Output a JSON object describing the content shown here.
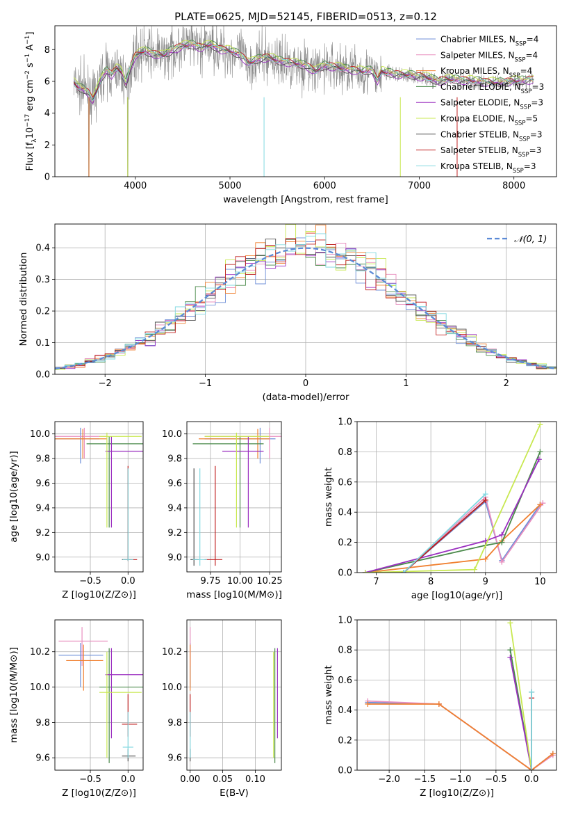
{
  "figure_title": "PLATE=0625, MJD=52145, FIBERID=0513, z=0.12",
  "models": [
    {
      "name": "Chabrier MILES",
      "nssp": "4",
      "color": "#6f8fd8"
    },
    {
      "name": "Salpeter MILES",
      "nssp": "4",
      "color": "#e88fbf"
    },
    {
      "name": "Kroupa MILES",
      "nssp": "4",
      "color": "#f08030"
    },
    {
      "name": "Chabrier ELODIE",
      "nssp": "3",
      "color": "#4a8a4a"
    },
    {
      "name": "Salpeter ELODIE",
      "nssp": "3",
      "color": "#9b30c0"
    },
    {
      "name": "Kroupa ELODIE",
      "nssp": "5",
      "color": "#c8e850"
    },
    {
      "name": "Chabrier STELIB",
      "nssp": "3",
      "color": "#505050"
    },
    {
      "name": "Salpeter STELIB",
      "nssp": "3",
      "color": "#c02020"
    },
    {
      "name": "Kroupa STELIB",
      "nssp": "3",
      "color": "#80d8e0"
    }
  ],
  "colors": {
    "data_line": "#8a8a8a",
    "gaussian": "#5b8ad6",
    "grid": "#b0b0b0"
  },
  "chart_data": [
    {
      "id": "spectrum",
      "type": "line",
      "title": "PLATE=0625, MJD=52145, FIBERID=0513, z=0.12",
      "xlabel": "wavelength [Angstrom, rest frame]",
      "ylabel_parts": [
        "Flux [f",
        "λ",
        "10",
        "−17",
        " erg cm",
        "−2",
        " s",
        "−1",
        " A",
        "−1",
        "]"
      ],
      "xlim": [
        3150,
        8450
      ],
      "ylim": [
        0,
        9.5
      ],
      "xticks": [
        4000,
        5000,
        6000,
        7000,
        8000
      ],
      "yticks": [
        0,
        2,
        4,
        6,
        8
      ],
      "grid": false,
      "legend_loc": "upper right",
      "model_curve": {
        "x": [
          3350,
          3400,
          3450,
          3500,
          3550,
          3600,
          3650,
          3700,
          3750,
          3800,
          3850,
          3900,
          3950,
          4000,
          4100,
          4200,
          4300,
          4400,
          4500,
          4600,
          4700,
          4800,
          4900,
          5000,
          5100,
          5200,
          5300,
          5400,
          5500,
          5600,
          5700,
          5800,
          5900,
          6000,
          6100,
          6200,
          6300,
          6400,
          6500,
          6560,
          6600,
          6700,
          6800,
          6900,
          7000,
          7100,
          7200,
          7300,
          7400,
          7600,
          7800,
          8000,
          8200
        ],
        "y": [
          5.9,
          5.6,
          5.5,
          5.3,
          4.8,
          5.5,
          6.3,
          6.7,
          6.4,
          6.8,
          6.6,
          5.8,
          6.9,
          7.6,
          7.9,
          7.7,
          7.6,
          8.0,
          8.2,
          8.3,
          8.1,
          8.3,
          8.0,
          7.9,
          7.7,
          7.1,
          7.4,
          7.5,
          7.3,
          7.2,
          7.1,
          7.0,
          6.6,
          7.0,
          6.9,
          6.8,
          6.7,
          6.6,
          6.7,
          6.0,
          6.6,
          6.5,
          6.4,
          6.4,
          6.3,
          6.2,
          6.0,
          6.1,
          6.1,
          6.0,
          5.9,
          6.0,
          6.1
        ]
      }
    },
    {
      "id": "residuals",
      "type": "step",
      "xlabel": "(data-model)/error",
      "ylabel": "Normed distribution",
      "xlim": [
        -2.5,
        2.5
      ],
      "ylim": [
        0,
        0.475
      ],
      "xticks": [
        -2,
        -1,
        0,
        1,
        2
      ],
      "yticks": [
        0.0,
        0.1,
        0.2,
        0.3,
        0.4
      ],
      "grid": true,
      "legend_loc": "upper right",
      "legend_label": "𝒩(0, 1)",
      "gaussian": {
        "mu": 0,
        "sigma": 1
      }
    },
    {
      "id": "age_vs_Z",
      "type": "errorbar",
      "xlabel": "Z [log10(Z/Z⊙)]",
      "ylabel": "age  [log10(age/yr)]",
      "xlim": [
        -0.97,
        0.2
      ],
      "ylim": [
        8.88,
        10.1
      ],
      "xticks": [
        -0.5,
        0.0
      ],
      "yticks": [
        9.0,
        9.2,
        9.4,
        9.6,
        9.8,
        10.0
      ],
      "grid": true,
      "points": [
        {
          "x": -0.63,
          "y": 9.96,
          "xl": -0.97,
          "xh": -0.38,
          "yl": 9.76,
          "yh": 10.05,
          "m": 0
        },
        {
          "x": -0.58,
          "y": 9.98,
          "xl": -0.97,
          "xh": -0.28,
          "yl": 9.8,
          "yh": 10.05,
          "m": 1
        },
        {
          "x": -0.6,
          "y": 9.96,
          "xl": -0.97,
          "xh": -0.28,
          "yl": 9.8,
          "yh": 10.04,
          "m": 2
        },
        {
          "x": -0.25,
          "y": 9.92,
          "xl": -0.55,
          "xh": 0.2,
          "yl": 9.24,
          "yh": 9.98,
          "m": 3
        },
        {
          "x": -0.22,
          "y": 9.86,
          "xl": -0.3,
          "xh": 0.22,
          "yl": 9.24,
          "yh": 9.98,
          "m": 4
        },
        {
          "x": -0.28,
          "y": 9.98,
          "xl": -0.38,
          "xh": 0.18,
          "yl": 9.24,
          "yh": 10.01,
          "m": 5
        },
        {
          "x": 0.0,
          "y": 8.98,
          "xl": -0.08,
          "xh": 0.05,
          "yl": 8.97,
          "yh": 9.72,
          "m": 6
        },
        {
          "x": 0.0,
          "y": 8.98,
          "xl": -0.06,
          "xh": 0.12,
          "yl": 8.97,
          "yh": 9.74,
          "m": 7
        },
        {
          "x": 0.0,
          "y": 8.98,
          "xl": -0.07,
          "xh": 0.07,
          "yl": 8.97,
          "yh": 9.72,
          "m": 8
        }
      ]
    },
    {
      "id": "age_vs_mass",
      "type": "errorbar",
      "xlabel": "mass [log10(M/M⊙)]",
      "ylabel": "",
      "xlim": [
        9.55,
        10.35
      ],
      "ylim": [
        8.88,
        10.1
      ],
      "xticks": [
        9.75,
        10.0,
        10.25
      ],
      "yticks": [
        9.0,
        9.2,
        9.4,
        9.6,
        9.8,
        10.0
      ],
      "grid": true,
      "points": [
        {
          "x": 10.17,
          "y": 9.96,
          "xl": 9.7,
          "xh": 10.3,
          "yl": 9.76,
          "yh": 10.05,
          "m": 0
        },
        {
          "x": 10.25,
          "y": 9.98,
          "xl": 9.7,
          "xh": 10.35,
          "yl": 9.8,
          "yh": 10.05,
          "m": 1
        },
        {
          "x": 10.15,
          "y": 9.96,
          "xl": 9.65,
          "xh": 10.25,
          "yl": 9.8,
          "yh": 10.04,
          "m": 2
        },
        {
          "x": 10.0,
          "y": 9.92,
          "xl": 9.6,
          "xh": 10.2,
          "yl": 9.24,
          "yh": 9.98,
          "m": 3
        },
        {
          "x": 10.07,
          "y": 9.86,
          "xl": 9.85,
          "xh": 10.2,
          "yl": 9.24,
          "yh": 9.98,
          "m": 4
        },
        {
          "x": 9.97,
          "y": 9.98,
          "xl": 9.7,
          "xh": 10.25,
          "yl": 9.24,
          "yh": 10.01,
          "m": 5
        },
        {
          "x": 9.61,
          "y": 8.98,
          "xl": 9.58,
          "xh": 9.65,
          "yl": 8.93,
          "yh": 9.72,
          "m": 6
        },
        {
          "x": 9.79,
          "y": 8.98,
          "xl": 9.7,
          "xh": 9.85,
          "yl": 8.93,
          "yh": 9.74,
          "m": 7
        },
        {
          "x": 9.66,
          "y": 8.98,
          "xl": 9.6,
          "xh": 9.72,
          "yl": 8.93,
          "yh": 9.72,
          "m": 8
        }
      ]
    },
    {
      "id": "weight_vs_age",
      "type": "line",
      "xlabel": "age  [log10(age/yr)]",
      "ylabel": "mass weight",
      "xlim": [
        6.65,
        10.3
      ],
      "ylim": [
        0,
        1
      ],
      "xticks": [
        7,
        8,
        9,
        10
      ],
      "yticks": [
        0.0,
        0.2,
        0.4,
        0.6,
        0.8,
        1.0
      ],
      "grid": true,
      "series": [
        {
          "m": 0,
          "x": [
            7.5,
            9.0,
            9.3,
            10.0
          ],
          "y": [
            0.0,
            0.47,
            0.08,
            0.45
          ]
        },
        {
          "m": 1,
          "x": [
            7.5,
            9.0,
            9.3,
            10.05
          ],
          "y": [
            0.0,
            0.5,
            0.07,
            0.46
          ]
        },
        {
          "m": 2,
          "x": [
            6.8,
            9.0,
            9.3,
            10.0
          ],
          "y": [
            0.0,
            0.09,
            0.21,
            0.45
          ]
        },
        {
          "m": 3,
          "x": [
            6.8,
            9.0,
            9.3,
            10.0
          ],
          "y": [
            0.0,
            0.18,
            0.2,
            0.8
          ]
        },
        {
          "m": 4,
          "x": [
            6.8,
            9.0,
            9.3,
            9.98
          ],
          "y": [
            0.0,
            0.21,
            0.25,
            0.75
          ]
        },
        {
          "m": 5,
          "x": [
            6.8,
            8.8,
            10.0
          ],
          "y": [
            0.0,
            0.02,
            0.98
          ]
        },
        {
          "m": 6,
          "x": [
            7.5,
            9.0
          ],
          "y": [
            0.0,
            0.48
          ]
        },
        {
          "m": 7,
          "x": [
            7.5,
            9.0
          ],
          "y": [
            0.0,
            0.48
          ]
        },
        {
          "m": 8,
          "x": [
            7.5,
            9.0
          ],
          "y": [
            0.0,
            0.52
          ]
        }
      ]
    },
    {
      "id": "mass_vs_Z",
      "type": "errorbar",
      "xlabel": "Z [log10(Z/Z⊙)]",
      "ylabel": "mass [log10(M/M⊙)]",
      "xlim": [
        -0.97,
        0.2
      ],
      "ylim": [
        9.53,
        10.38
      ],
      "xticks": [
        -0.5,
        0.0
      ],
      "yticks": [
        9.6,
        9.8,
        10.0,
        10.2
      ],
      "grid": true,
      "points": [
        {
          "x": -0.63,
          "y": 10.18,
          "xl": -0.92,
          "xh": -0.33,
          "yl": 10.0,
          "yh": 10.25,
          "m": 0
        },
        {
          "x": -0.61,
          "y": 10.26,
          "xl": -0.92,
          "xh": -0.27,
          "yl": 10.12,
          "yh": 10.34,
          "m": 1
        },
        {
          "x": -0.59,
          "y": 10.15,
          "xl": -0.82,
          "xh": -0.33,
          "yl": 9.98,
          "yh": 10.24,
          "m": 2
        },
        {
          "x": -0.25,
          "y": 10.0,
          "xl": -0.38,
          "xh": 0.22,
          "yl": 9.57,
          "yh": 10.22,
          "m": 3
        },
        {
          "x": -0.22,
          "y": 10.07,
          "xl": -0.3,
          "xh": 0.22,
          "yl": 9.71,
          "yh": 10.22,
          "m": 4
        },
        {
          "x": -0.28,
          "y": 9.97,
          "xl": -0.38,
          "xh": 0.18,
          "yl": 9.6,
          "yh": 10.2,
          "m": 5
        },
        {
          "x": 0.0,
          "y": 9.61,
          "xl": -0.08,
          "xh": 0.1,
          "yl": 9.58,
          "yh": 9.65,
          "m": 6
        },
        {
          "x": 0.0,
          "y": 9.79,
          "xl": -0.08,
          "xh": 0.12,
          "yl": 9.72,
          "yh": 9.96,
          "m": 7
        },
        {
          "x": 0.0,
          "y": 9.66,
          "xl": -0.07,
          "xh": 0.07,
          "yl": 9.6,
          "yh": 9.86,
          "m": 8
        }
      ]
    },
    {
      "id": "mass_vs_EBV",
      "type": "errorbar",
      "xlabel": "E(B-V)",
      "ylabel": "",
      "xlim": [
        -0.005,
        0.14
      ],
      "ylim": [
        9.53,
        10.38
      ],
      "xticks": [
        0.0,
        0.05,
        0.1
      ],
      "yticks": [
        9.6,
        9.8,
        10.0,
        10.2
      ],
      "grid": true,
      "points": [
        {
          "x": 0.0,
          "y": 10.18,
          "xl": 0.0,
          "xh": 0.0,
          "yl": 10.0,
          "yh": 10.25,
          "m": 0
        },
        {
          "x": 0.0,
          "y": 10.26,
          "xl": 0.0,
          "xh": 0.0,
          "yl": 10.12,
          "yh": 10.34,
          "m": 1
        },
        {
          "x": 0.0,
          "y": 10.15,
          "xl": 0.0,
          "xh": 0.0,
          "yl": 9.98,
          "yh": 10.24,
          "m": 2
        },
        {
          "x": 0.13,
          "y": 10.0,
          "xl": 0.13,
          "xh": 0.13,
          "yl": 9.57,
          "yh": 10.22,
          "m": 3
        },
        {
          "x": 0.134,
          "y": 10.07,
          "xl": 0.134,
          "xh": 0.134,
          "yl": 9.71,
          "yh": 10.22,
          "m": 4
        },
        {
          "x": 0.128,
          "y": 9.97,
          "xl": 0.128,
          "xh": 0.128,
          "yl": 9.6,
          "yh": 10.2,
          "m": 5
        },
        {
          "x": 0.0,
          "y": 9.61,
          "xl": 0.0,
          "xh": 0.0,
          "yl": 9.58,
          "yh": 9.65,
          "m": 6
        },
        {
          "x": 0.0,
          "y": 9.79,
          "xl": 0.0,
          "xh": 0.0,
          "yl": 9.72,
          "yh": 9.96,
          "m": 7
        },
        {
          "x": 0.0,
          "y": 9.66,
          "xl": 0.0,
          "xh": 0.0,
          "yl": 9.6,
          "yh": 9.86,
          "m": 8
        }
      ]
    },
    {
      "id": "weight_vs_Z",
      "type": "line",
      "xlabel": "Z [log10(Z/Z⊙)]",
      "ylabel": "mass weight",
      "xlim": [
        -2.45,
        0.35
      ],
      "ylim": [
        0,
        1
      ],
      "xticks": [
        -2.0,
        -1.5,
        -1.0,
        -0.5,
        0.0
      ],
      "yticks": [
        0.0,
        0.2,
        0.4,
        0.6,
        0.8,
        1.0
      ],
      "grid": true,
      "series": [
        {
          "m": 0,
          "x": [
            -2.3,
            -1.3,
            0.0,
            0.3
          ],
          "y": [
            0.45,
            0.44,
            0.0,
            0.11
          ]
        },
        {
          "m": 1,
          "x": [
            -2.3,
            -1.3,
            0.0,
            0.3
          ],
          "y": [
            0.46,
            0.44,
            0.0,
            0.1
          ]
        },
        {
          "m": 2,
          "x": [
            -2.3,
            -1.3,
            0.0,
            0.3
          ],
          "y": [
            0.44,
            0.44,
            0.0,
            0.11
          ]
        },
        {
          "m": 3,
          "x": [
            -0.3,
            0.0
          ],
          "y": [
            0.8,
            0.0
          ]
        },
        {
          "m": 4,
          "x": [
            -0.3,
            0.0
          ],
          "y": [
            0.75,
            0.0
          ]
        },
        {
          "m": 5,
          "x": [
            -0.3,
            0.0
          ],
          "y": [
            0.98,
            0.0
          ]
        },
        {
          "m": 6,
          "x": [
            0.0,
            0.0
          ],
          "y": [
            0.0,
            0.52
          ]
        },
        {
          "m": 7,
          "x": [
            0.0,
            0.0
          ],
          "y": [
            0.0,
            0.48
          ]
        },
        {
          "m": 8,
          "x": [
            0.0,
            0.0
          ],
          "y": [
            0.0,
            0.52
          ]
        }
      ]
    }
  ]
}
